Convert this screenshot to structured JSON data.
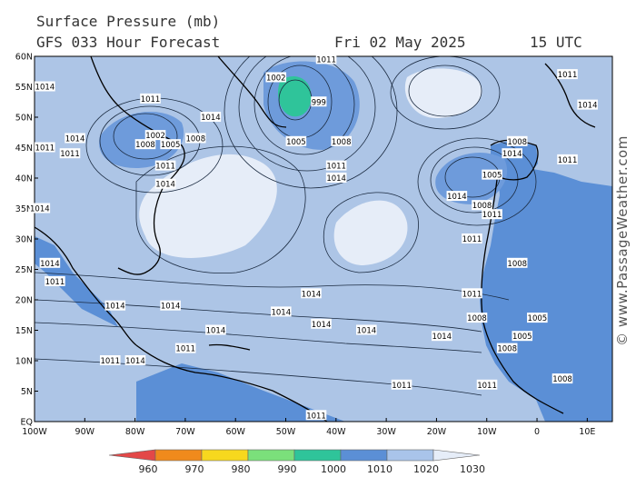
{
  "header": {
    "title": "Surface Pressure (mb)",
    "forecast": "GFS 033 Hour Forecast",
    "date": "Fri 02 May 2025",
    "time": "15 UTC"
  },
  "watermark": "© www.PassageWeather.com",
  "map": {
    "lat_labels": [
      "60N",
      "55N",
      "50N",
      "45N",
      "40N",
      "35N",
      "30N",
      "25N",
      "20N",
      "15N",
      "10N",
      "5N",
      "EQ"
    ],
    "lon_labels": [
      "100W",
      "90W",
      "80W",
      "70W",
      "60W",
      "50W",
      "40W",
      "30W",
      "20W",
      "10W",
      "0",
      "10E"
    ],
    "colors": {
      "ocean_base": "#adc5e6",
      "land": "#5b8fd6",
      "high_1020": "#e6edf8",
      "low_1000": "#6e9bdb",
      "low_990": "#2fc49a",
      "coast": "#000000",
      "isobar": "#1a2a40"
    },
    "isobar_labels": [
      {
        "text": "1002",
        "lon": -52,
        "lat": 56.5
      },
      {
        "text": "1011",
        "lon": -42,
        "lat": 59.5
      },
      {
        "text": "999",
        "lon": -43,
        "lat": 52.5
      },
      {
        "text": "1005",
        "lon": -48,
        "lat": 46
      },
      {
        "text": "1008",
        "lon": -39,
        "lat": 46
      },
      {
        "text": "1011",
        "lon": -40,
        "lat": 42
      },
      {
        "text": "1014",
        "lon": -40,
        "lat": 40
      },
      {
        "text": "1014",
        "lon": -98,
        "lat": 55
      },
      {
        "text": "1011",
        "lon": -77,
        "lat": 53
      },
      {
        "text": "1014",
        "lon": -65,
        "lat": 50
      },
      {
        "text": "1002",
        "lon": -76,
        "lat": 47
      },
      {
        "text": "1008",
        "lon": -78,
        "lat": 45.5
      },
      {
        "text": "1005",
        "lon": -73,
        "lat": 45.5
      },
      {
        "text": "1008",
        "lon": -68,
        "lat": 46.5
      },
      {
        "text": "1011",
        "lon": -74,
        "lat": 42
      },
      {
        "text": "1014",
        "lon": -92,
        "lat": 46.5
      },
      {
        "text": "1011",
        "lon": -98,
        "lat": 45
      },
      {
        "text": "1011",
        "lon": -93,
        "lat": 44
      },
      {
        "text": "1014",
        "lon": -74,
        "lat": 39
      },
      {
        "text": "1014",
        "lon": -99,
        "lat": 35
      },
      {
        "text": "1014",
        "lon": -97,
        "lat": 26
      },
      {
        "text": "1011",
        "lon": -96,
        "lat": 23
      },
      {
        "text": "1014",
        "lon": -84,
        "lat": 19
      },
      {
        "text": "1014",
        "lon": -73,
        "lat": 19
      },
      {
        "text": "1014",
        "lon": -64,
        "lat": 15
      },
      {
        "text": "1014",
        "lon": -51,
        "lat": 18
      },
      {
        "text": "1014",
        "lon": -45,
        "lat": 21
      },
      {
        "text": "1014",
        "lon": -43,
        "lat": 16
      },
      {
        "text": "1014",
        "lon": -34,
        "lat": 15
      },
      {
        "text": "1014",
        "lon": -19,
        "lat": 14
      },
      {
        "text": "1011",
        "lon": -13,
        "lat": 30
      },
      {
        "text": "1011",
        "lon": -13,
        "lat": 21
      },
      {
        "text": "1011",
        "lon": -27,
        "lat": 6
      },
      {
        "text": "1011",
        "lon": -44,
        "lat": 1
      },
      {
        "text": "1014",
        "lon": -16,
        "lat": 37
      },
      {
        "text": "1005",
        "lon": -9,
        "lat": 40.5
      },
      {
        "text": "1008",
        "lon": -11,
        "lat": 35.5
      },
      {
        "text": "1011",
        "lon": -9,
        "lat": 34
      },
      {
        "text": "1014",
        "lon": -5,
        "lat": 44
      },
      {
        "text": "1008",
        "lon": -4,
        "lat": 46
      },
      {
        "text": "1011",
        "lon": 6,
        "lat": 43
      },
      {
        "text": "1014",
        "lon": 10,
        "lat": 52
      },
      {
        "text": "1011",
        "lon": 6,
        "lat": 57
      },
      {
        "text": "1011",
        "lon": -85,
        "lat": 10
      },
      {
        "text": "1014",
        "lon": -80,
        "lat": 10
      },
      {
        "text": "1011",
        "lon": -70,
        "lat": 12
      },
      {
        "text": "1008",
        "lon": -4,
        "lat": 26
      },
      {
        "text": "1008",
        "lon": -12,
        "lat": 17
      },
      {
        "text": "1005",
        "lon": 0,
        "lat": 17
      },
      {
        "text": "1005",
        "lon": -3,
        "lat": 14
      },
      {
        "text": "1008",
        "lon": -6,
        "lat": 12
      },
      {
        "text": "1011",
        "lon": -10,
        "lat": 6
      },
      {
        "text": "1008",
        "lon": 5,
        "lat": 7
      }
    ]
  },
  "legend": {
    "labels": [
      "960",
      "970",
      "980",
      "990",
      "1000",
      "1010",
      "1020",
      "1030"
    ],
    "colors": [
      "#e34848",
      "#f08a1c",
      "#f7d81e",
      "#7be07b",
      "#2fc49a",
      "#5b8fd6",
      "#a9c4ea",
      "#e6edf8"
    ]
  }
}
